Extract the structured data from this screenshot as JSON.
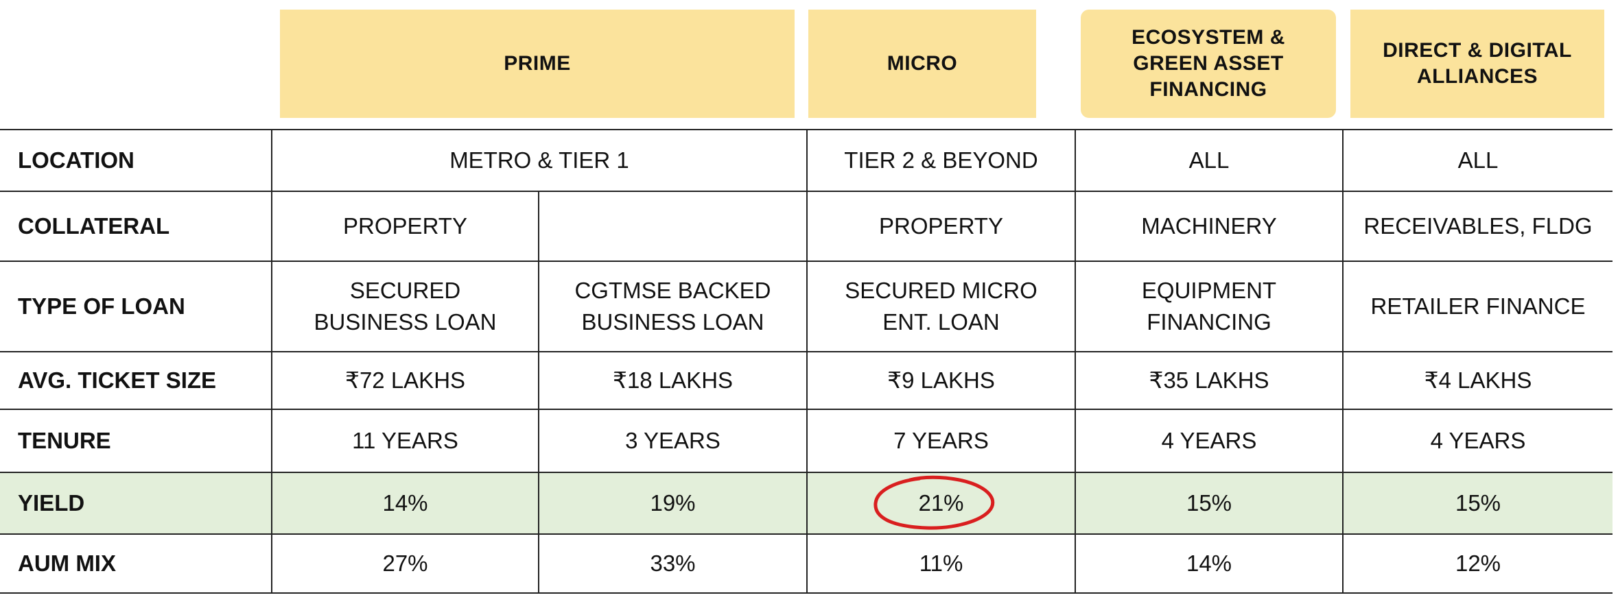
{
  "columns": {
    "prime": "PRIME",
    "micro": "MICRO",
    "ecosystem": "ECOSYSTEM &\nGREEN ASSET\nFINANCING",
    "direct": "DIRECT & DIGITAL\nALLIANCES"
  },
  "rows": {
    "location": {
      "label": "LOCATION",
      "prime": "METRO & TIER 1",
      "micro": "TIER 2 & BEYOND",
      "ecosystem": "ALL",
      "direct": "ALL"
    },
    "collateral": {
      "label": "COLLATERAL",
      "prime_secured": "PROPERTY",
      "prime_cgtmse": "",
      "micro": "PROPERTY",
      "ecosystem": "MACHINERY",
      "direct": "RECEIVABLES, FLDG"
    },
    "loan_type": {
      "label": "TYPE OF LOAN",
      "prime_secured": "SECURED\nBUSINESS LOAN",
      "prime_cgtmse": "CGTMSE BACKED\nBUSINESS LOAN",
      "micro": "SECURED MICRO\nENT. LOAN",
      "ecosystem": "EQUIPMENT\nFINANCING",
      "direct": "RETAILER FINANCE"
    },
    "ticket_size": {
      "label": "AVG. TICKET SIZE",
      "prime_secured": "₹72 LAKHS",
      "prime_cgtmse": "₹18 LAKHS",
      "micro": "₹9 LAKHS",
      "ecosystem": "₹35 LAKHS",
      "direct": "₹4 LAKHS"
    },
    "tenure": {
      "label": "TENURE",
      "prime_secured": "11 YEARS",
      "prime_cgtmse": "3 YEARS",
      "micro": "7 YEARS",
      "ecosystem": "4 YEARS",
      "direct": "4 YEARS"
    },
    "yield": {
      "label": "YIELD",
      "prime_secured": "14%",
      "prime_cgtmse": "19%",
      "micro": "21%",
      "ecosystem": "15%",
      "direct": "15%"
    },
    "aum_mix": {
      "label": "AUM MIX",
      "prime_secured": "27%",
      "prime_cgtmse": "33%",
      "micro": "11%",
      "ecosystem": "14%",
      "direct": "12%"
    }
  },
  "colors": {
    "header_fill": "#fbe39c",
    "yield_row_fill": "#e3efda",
    "highlight_circle": "#d91f1f",
    "grid_line": "#222222"
  }
}
